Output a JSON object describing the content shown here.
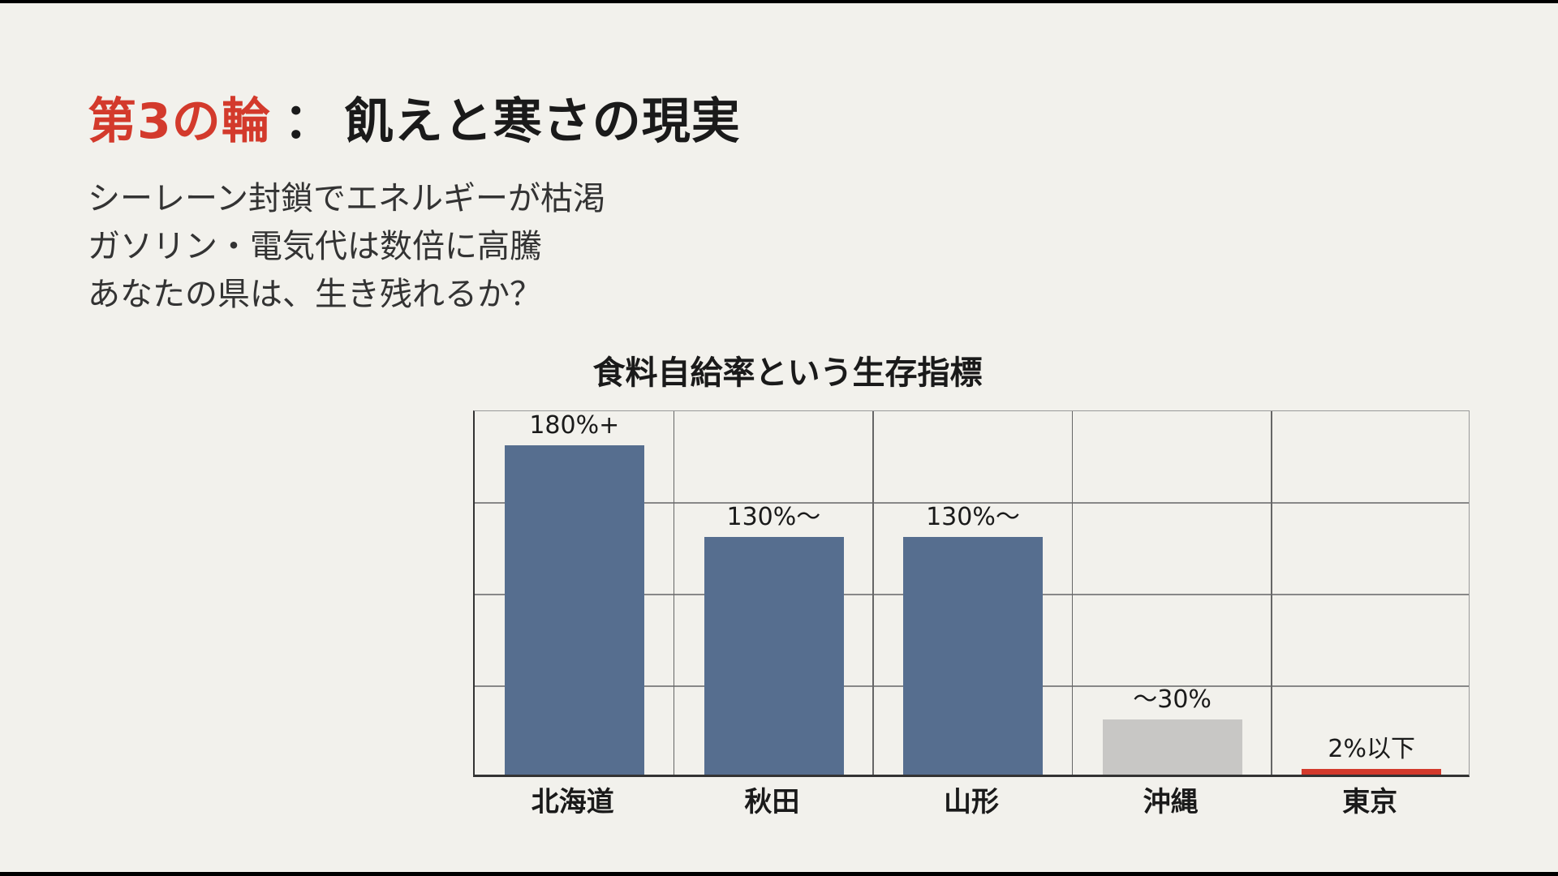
{
  "slide": {
    "title_accent": "第3の輪",
    "title_separator": "：",
    "title_rest": "飢えと寒さの現実",
    "subtitle_lines": [
      "シーレーン封鎖でエネルギーが枯渇",
      "ガソリン・電気代は数倍に高騰",
      "あなたの県は、生き残れるか？"
    ]
  },
  "colors": {
    "accent_red": "#d33a2c",
    "bar_blue": "#566e8f",
    "bar_grey": "#c8c7c5",
    "bar_red": "#d33a2c",
    "background": "#f2f1ec"
  },
  "chart_data": {
    "type": "bar",
    "title": "食料自給率という生存指標",
    "xlabel": "",
    "ylabel": "",
    "categories": [
      "北海道",
      "秋田",
      "山形",
      "沖縄",
      "東京"
    ],
    "values": [
      180,
      130,
      130,
      30,
      2
    ],
    "value_labels": [
      "180%+",
      "130%〜",
      "130%〜",
      "〜30%",
      "2%以下"
    ],
    "bar_colors": [
      "#566e8f",
      "#566e8f",
      "#566e8f",
      "#c8c7c5",
      "#d33a2c"
    ],
    "ylim": [
      0,
      200
    ],
    "grid": true,
    "grid_rows": 4,
    "legend": "none",
    "y_tick_labels_shown": false
  }
}
